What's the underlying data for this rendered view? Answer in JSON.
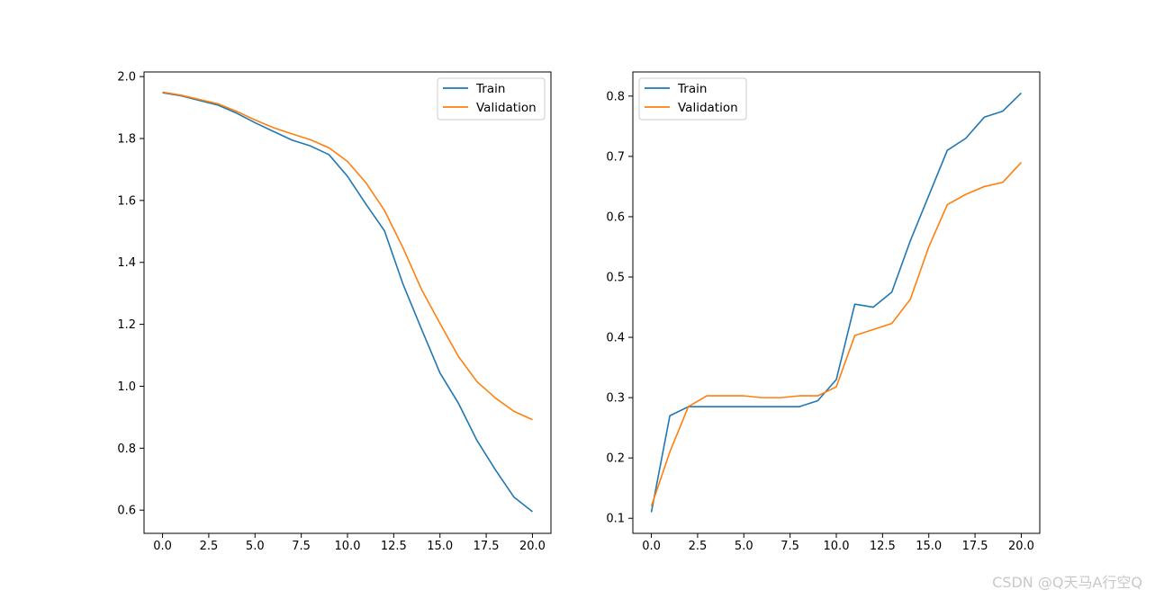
{
  "chart_data": [
    {
      "type": "line",
      "title": "",
      "xlabel": "",
      "ylabel": "",
      "xlim": [
        -1,
        21
      ],
      "ylim": [
        0.525,
        2.015
      ],
      "xticks": [
        0.0,
        2.5,
        5.0,
        7.5,
        10.0,
        12.5,
        15.0,
        17.5,
        20.0
      ],
      "xtick_labels": [
        "0.0",
        "2.5",
        "5.0",
        "7.5",
        "10.0",
        "12.5",
        "15.0",
        "17.5",
        "20.0"
      ],
      "yticks": [
        0.6,
        0.8,
        1.0,
        1.2,
        1.4,
        1.6,
        1.8,
        2.0
      ],
      "ytick_labels": [
        "0.6",
        "0.8",
        "1.0",
        "1.2",
        "1.4",
        "1.6",
        "1.8",
        "2.0"
      ],
      "grid": false,
      "legend_position": "top-right",
      "x": [
        0,
        1,
        2,
        3,
        4,
        5,
        6,
        7,
        8,
        9,
        10,
        11,
        12,
        13,
        14,
        15,
        16,
        17,
        18,
        19,
        20
      ],
      "series": [
        {
          "name": "Train",
          "color": "#1f77b4",
          "values": [
            1.948,
            1.938,
            1.923,
            1.908,
            1.882,
            1.851,
            1.823,
            1.795,
            1.776,
            1.748,
            1.678,
            1.588,
            1.502,
            1.33,
            1.185,
            1.043,
            0.945,
            0.825,
            0.73,
            0.642,
            0.595
          ]
        },
        {
          "name": "Validation",
          "color": "#ff7f0e",
          "values": [
            1.95,
            1.94,
            1.926,
            1.912,
            1.888,
            1.86,
            1.835,
            1.815,
            1.796,
            1.77,
            1.726,
            1.657,
            1.568,
            1.447,
            1.313,
            1.203,
            1.096,
            1.015,
            0.962,
            0.919,
            0.892
          ]
        }
      ]
    },
    {
      "type": "line",
      "title": "",
      "xlabel": "",
      "ylabel": "",
      "xlim": [
        -1,
        21
      ],
      "ylim": [
        0.075,
        0.84
      ],
      "xticks": [
        0.0,
        2.5,
        5.0,
        7.5,
        10.0,
        12.5,
        15.0,
        17.5,
        20.0
      ],
      "xtick_labels": [
        "0.0",
        "2.5",
        "5.0",
        "7.5",
        "10.0",
        "12.5",
        "15.0",
        "17.5",
        "20.0"
      ],
      "yticks": [
        0.1,
        0.2,
        0.3,
        0.4,
        0.5,
        0.6,
        0.7,
        0.8
      ],
      "ytick_labels": [
        "0.1",
        "0.2",
        "0.3",
        "0.4",
        "0.5",
        "0.6",
        "0.7",
        "0.8"
      ],
      "grid": false,
      "legend_position": "top-left",
      "x": [
        0,
        1,
        2,
        3,
        4,
        5,
        6,
        7,
        8,
        9,
        10,
        11,
        12,
        13,
        14,
        15,
        16,
        17,
        18,
        19,
        20
      ],
      "series": [
        {
          "name": "Train",
          "color": "#1f77b4",
          "values": [
            0.11,
            0.27,
            0.285,
            0.285,
            0.285,
            0.285,
            0.285,
            0.285,
            0.285,
            0.295,
            0.33,
            0.455,
            0.45,
            0.475,
            0.56,
            0.635,
            0.71,
            0.73,
            0.765,
            0.775,
            0.805
          ]
        },
        {
          "name": "Validation",
          "color": "#ff7f0e",
          "values": [
            0.12,
            0.21,
            0.285,
            0.303,
            0.303,
            0.303,
            0.3,
            0.3,
            0.303,
            0.303,
            0.318,
            0.403,
            0.413,
            0.423,
            0.463,
            0.55,
            0.62,
            0.637,
            0.65,
            0.657,
            0.69
          ]
        }
      ]
    }
  ],
  "watermark": "CSDN @Q天马A行空Q"
}
